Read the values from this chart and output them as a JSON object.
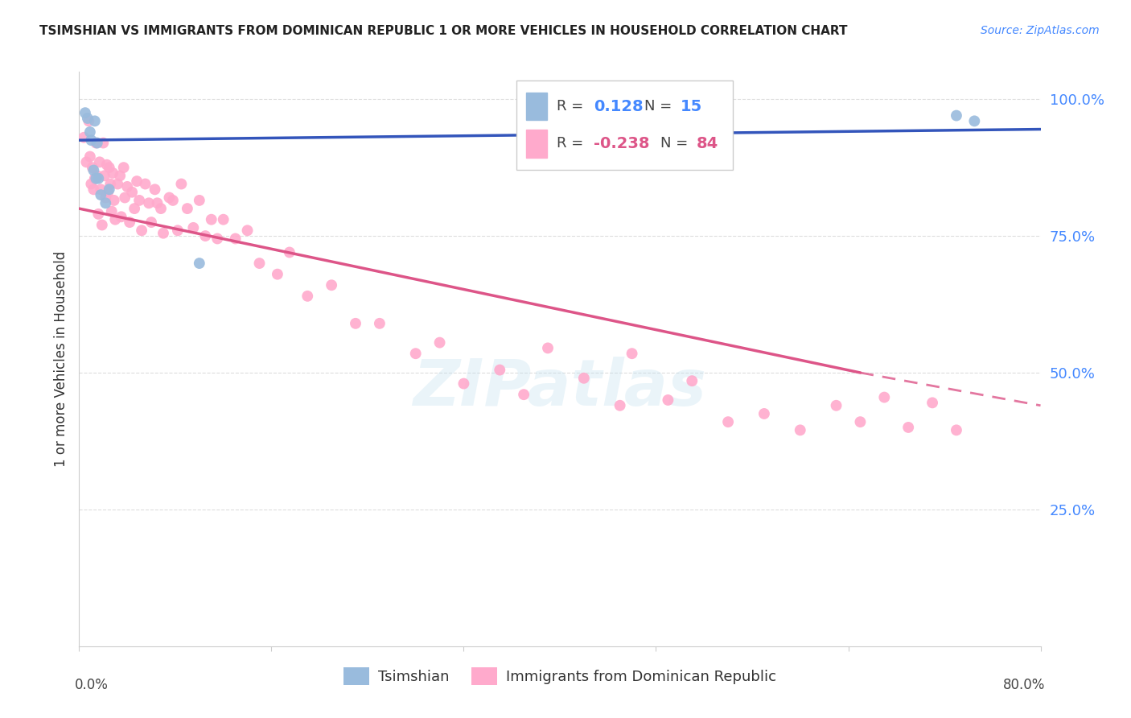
{
  "title": "TSIMSHIAN VS IMMIGRANTS FROM DOMINICAN REPUBLIC 1 OR MORE VEHICLES IN HOUSEHOLD CORRELATION CHART",
  "source": "Source: ZipAtlas.com",
  "ylabel": "1 or more Vehicles in Household",
  "watermark": "ZIPatlas",
  "xlim": [
    0.0,
    0.8
  ],
  "ylim": [
    0.0,
    1.05
  ],
  "ytick_vals": [
    0.25,
    0.5,
    0.75,
    1.0
  ],
  "ytick_labels": [
    "25.0%",
    "50.0%",
    "75.0%",
    "100.0%"
  ],
  "blue_color": "#99BBDD",
  "pink_color": "#FFAACC",
  "line_blue": "#3355BB",
  "line_pink": "#DD5588",
  "tsimshian_x": [
    0.005,
    0.007,
    0.009,
    0.01,
    0.012,
    0.013,
    0.014,
    0.015,
    0.016,
    0.018,
    0.022,
    0.025,
    0.73,
    0.745,
    0.1
  ],
  "tsimshian_y": [
    0.975,
    0.965,
    0.94,
    0.925,
    0.87,
    0.96,
    0.855,
    0.92,
    0.855,
    0.825,
    0.81,
    0.835,
    0.97,
    0.96,
    0.7
  ],
  "dominican_x": [
    0.004,
    0.006,
    0.008,
    0.009,
    0.01,
    0.011,
    0.012,
    0.013,
    0.014,
    0.015,
    0.016,
    0.017,
    0.018,
    0.019,
    0.02,
    0.021,
    0.022,
    0.023,
    0.024,
    0.025,
    0.026,
    0.027,
    0.028,
    0.029,
    0.03,
    0.032,
    0.034,
    0.035,
    0.037,
    0.038,
    0.04,
    0.042,
    0.044,
    0.046,
    0.048,
    0.05,
    0.052,
    0.055,
    0.058,
    0.06,
    0.063,
    0.065,
    0.068,
    0.07,
    0.075,
    0.078,
    0.082,
    0.085,
    0.09,
    0.095,
    0.1,
    0.105,
    0.11,
    0.115,
    0.12,
    0.13,
    0.14,
    0.15,
    0.165,
    0.175,
    0.19,
    0.21,
    0.23,
    0.25,
    0.28,
    0.3,
    0.32,
    0.35,
    0.37,
    0.39,
    0.42,
    0.45,
    0.46,
    0.49,
    0.51,
    0.54,
    0.57,
    0.6,
    0.63,
    0.65,
    0.67,
    0.69,
    0.71,
    0.73
  ],
  "dominican_y": [
    0.93,
    0.885,
    0.96,
    0.895,
    0.845,
    0.875,
    0.835,
    0.855,
    0.92,
    0.86,
    0.79,
    0.885,
    0.835,
    0.77,
    0.92,
    0.86,
    0.82,
    0.88,
    0.83,
    0.875,
    0.845,
    0.795,
    0.865,
    0.815,
    0.78,
    0.845,
    0.86,
    0.785,
    0.875,
    0.82,
    0.84,
    0.775,
    0.83,
    0.8,
    0.85,
    0.815,
    0.76,
    0.845,
    0.81,
    0.775,
    0.835,
    0.81,
    0.8,
    0.755,
    0.82,
    0.815,
    0.76,
    0.845,
    0.8,
    0.765,
    0.815,
    0.75,
    0.78,
    0.745,
    0.78,
    0.745,
    0.76,
    0.7,
    0.68,
    0.72,
    0.64,
    0.66,
    0.59,
    0.59,
    0.535,
    0.555,
    0.48,
    0.505,
    0.46,
    0.545,
    0.49,
    0.44,
    0.535,
    0.45,
    0.485,
    0.41,
    0.425,
    0.395,
    0.44,
    0.41,
    0.455,
    0.4,
    0.445,
    0.395
  ],
  "pink_line_x0": 0.0,
  "pink_line_y0": 0.8,
  "pink_line_x1": 0.65,
  "pink_line_y1": 0.5,
  "pink_line_x2": 0.8,
  "pink_line_y2": 0.44,
  "blue_line_x0": 0.0,
  "blue_line_y0": 0.925,
  "blue_line_x1": 0.8,
  "blue_line_y1": 0.945,
  "background_color": "#FFFFFF",
  "grid_color": "#DDDDDD"
}
